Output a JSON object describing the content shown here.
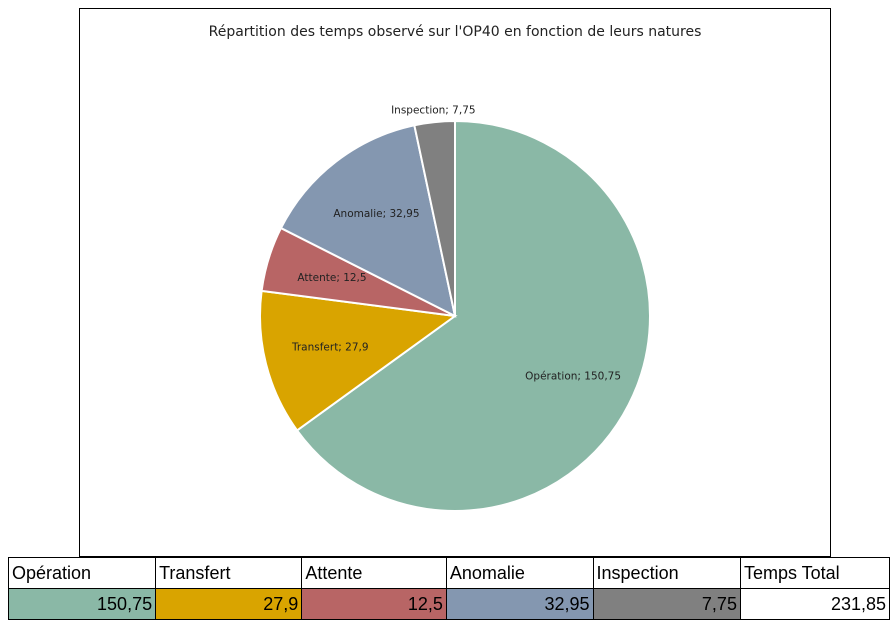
{
  "chart_data": {
    "type": "pie",
    "title": "Répartition des temps observé sur l'OP40 en fonction de leurs natures",
    "categories": [
      "Opération",
      "Transfert",
      "Attente",
      "Anomalie",
      "Inspection"
    ],
    "values": [
      150.75,
      27.9,
      12.5,
      32.95,
      7.75
    ],
    "value_labels": [
      "Opération; 150,75",
      "Transfert; 27,9",
      "Attente; 12,5",
      "Anomalie; 32,95",
      "Inspection; 7,75"
    ],
    "colors": [
      "#8ab8a6",
      "#d9a400",
      "#b86565",
      "#8497b0",
      "#808080"
    ]
  },
  "table": {
    "header": [
      "Opération",
      "Transfert",
      "Attente",
      "Anomalie",
      "Inspection",
      "Temps Total"
    ],
    "rows": [
      [
        "150,75",
        "27,9",
        "12,5",
        "32,95",
        "7,75",
        "231,85"
      ]
    ]
  }
}
